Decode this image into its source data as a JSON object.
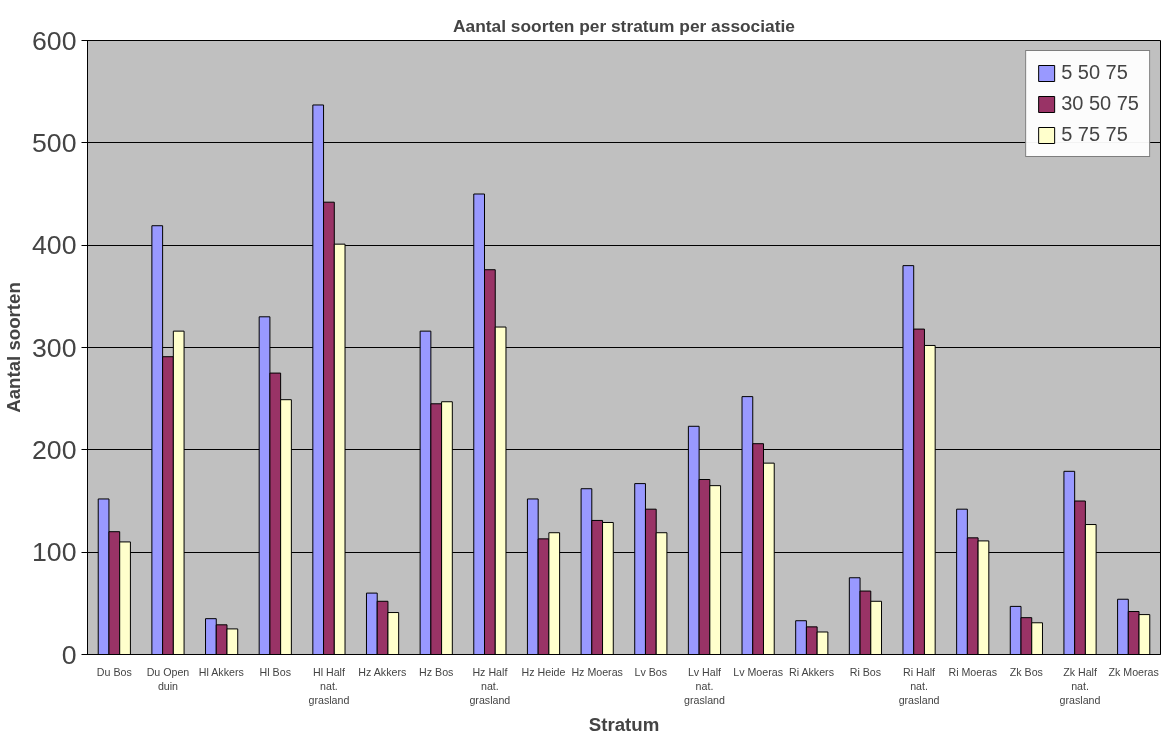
{
  "chart_data": {
    "type": "bar",
    "title": "Aantal soorten per stratum per associatie",
    "xlabel": "Stratum",
    "ylabel": "Aantal soorten",
    "categories": [
      "Du Bos",
      "Du Open duin",
      "Hl Akkers",
      "Hl Bos",
      "Hl Half nat. grasland",
      "Hz Akkers",
      "Hz Bos",
      "Hz Half nat. grasland",
      "Hz Heide",
      "Hz Moeras",
      "Lv Bos",
      "Lv Half nat. grasland",
      "Lv Moeras",
      "Ri Akkers",
      "Ri Bos",
      "Ri Half nat. grasland",
      "Ri Moeras",
      "Zk Bos",
      "Zk Half nat. grasland",
      "Zk Moeras"
    ],
    "series": [
      {
        "name": "5 50 75",
        "color": "#9999ff",
        "values": [
          152,
          419,
          35,
          330,
          537,
          60,
          316,
          450,
          152,
          162,
          167,
          223,
          252,
          33,
          75,
          380,
          142,
          47,
          179,
          54
        ]
      },
      {
        "name": "30 50 75",
        "color": "#993366",
        "values": [
          120,
          291,
          29,
          275,
          442,
          52,
          245,
          376,
          113,
          131,
          142,
          171,
          206,
          27,
          62,
          318,
          114,
          36,
          150,
          42
        ]
      },
      {
        "name": "5 75 75",
        "color": "#ffffcc",
        "values": [
          110,
          316,
          25,
          249,
          401,
          41,
          247,
          320,
          119,
          129,
          119,
          165,
          187,
          22,
          52,
          302,
          111,
          31,
          127,
          39
        ]
      }
    ],
    "ylim": [
      0,
      600
    ],
    "yticks": [
      0,
      100,
      200,
      300,
      400,
      500,
      600
    ],
    "grid": "y",
    "legend": "top right"
  }
}
